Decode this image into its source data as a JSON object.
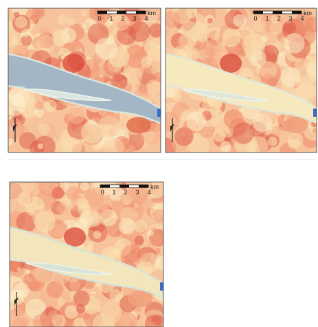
{
  "panels": [
    {
      "scale": {
        "labels": [
          "0",
          "1",
          "2",
          "3",
          "4"
        ],
        "unit": "km"
      }
    },
    {
      "scale": {
        "labels": [
          "0",
          "1",
          "2",
          "3",
          "4"
        ],
        "unit": "km"
      }
    },
    {
      "scale": {
        "labels": [
          "0",
          "1",
          "2",
          "3",
          "4"
        ],
        "unit": "km"
      }
    }
  ]
}
